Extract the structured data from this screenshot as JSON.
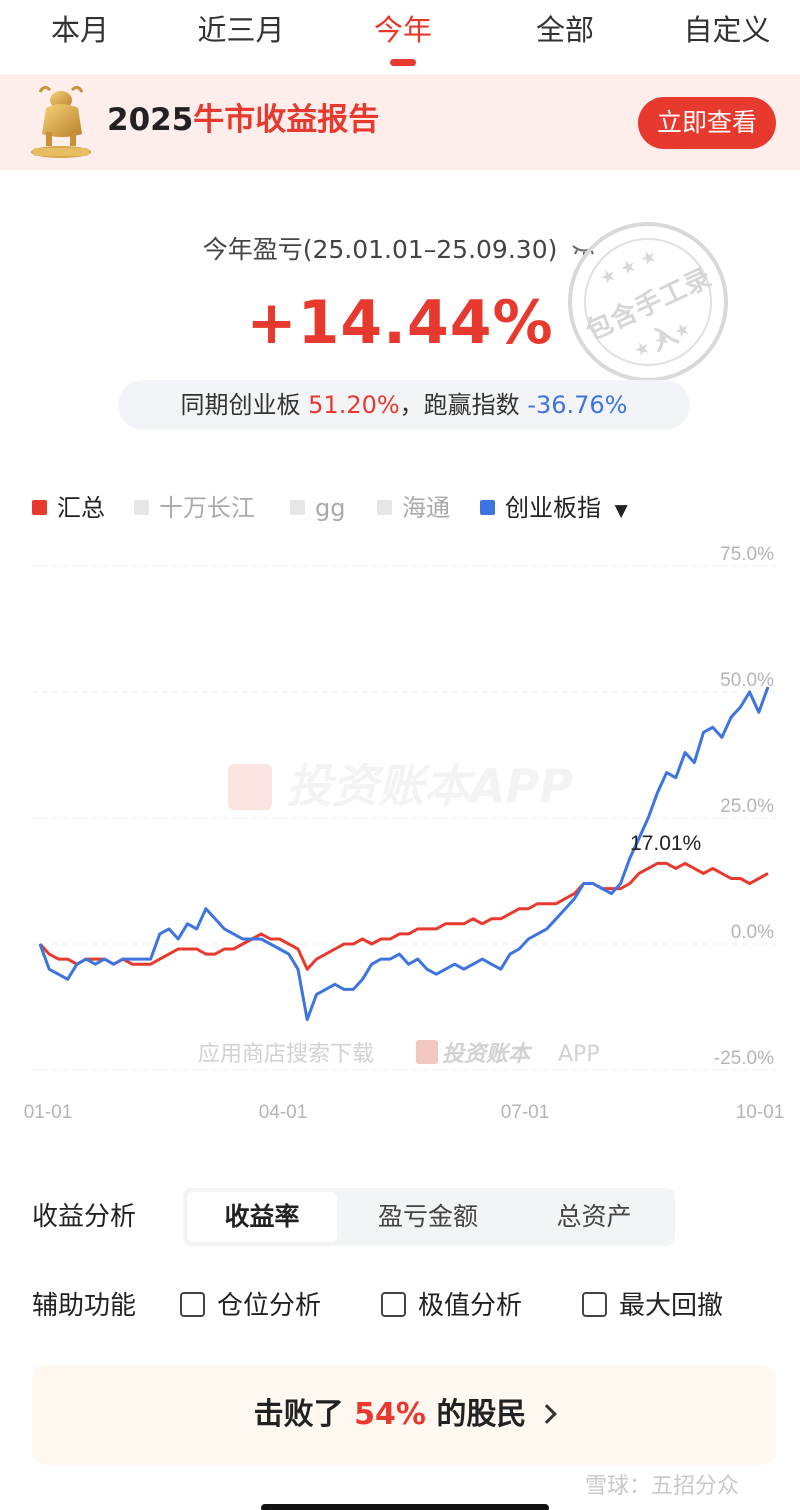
{
  "tabs": [
    {
      "label": "本月",
      "active": false
    },
    {
      "label": "近三月",
      "active": false
    },
    {
      "label": "今年",
      "active": true
    },
    {
      "label": "全部",
      "active": false
    },
    {
      "label": "自定义",
      "active": false
    }
  ],
  "banner": {
    "year": "2025",
    "title_highlight": "牛市收益报告",
    "button_label": "立即查看",
    "icon": "bull-trophy-icon"
  },
  "summary": {
    "period_label": "今年盈亏(25.01.01–25.09.30)",
    "hide_icon": "eye-closed-icon",
    "return_value": "+14.44%",
    "compare_prefix": "同期创业板",
    "compare_index_value": "51.20%",
    "compare_mid": "，跑赢指数",
    "compare_diff": "-36.76%",
    "stamp_text": "包含手工录入",
    "stamp_stars": "★★★"
  },
  "legend": [
    {
      "label": "汇总",
      "color": "#e8392f",
      "active": true
    },
    {
      "label": "十万长江",
      "color": "#e6e6e6",
      "active": false
    },
    {
      "label": "gg",
      "color": "#e6e6e6",
      "active": false
    },
    {
      "label": "海通",
      "color": "#e6e6e6",
      "active": false
    },
    {
      "label": "创业板指",
      "color": "#3d74e0",
      "active": true,
      "dropdown": "▼"
    }
  ],
  "chart_data": {
    "type": "line",
    "x_ticks": [
      "01-01",
      "04-01",
      "07-01",
      "10-01"
    ],
    "y_ticks": [
      "75.0%",
      "50.0%",
      "25.0%",
      "0.0%",
      "-25.0%"
    ],
    "ylim": [
      -25,
      75
    ],
    "grid": true,
    "annotation": "17.01%",
    "watermark": "投资账本APP",
    "watermark_bottom": "应用商店搜索下载",
    "watermark_bottom_brand": "投资账本",
    "watermark_bottom_suffix": "APP",
    "series": [
      {
        "name": "汇总",
        "color": "#e8392f",
        "points": [
          [
            0,
            0
          ],
          [
            2,
            -2
          ],
          [
            4,
            -3
          ],
          [
            6,
            -3
          ],
          [
            8,
            -4
          ],
          [
            10,
            -3
          ],
          [
            12,
            -3
          ],
          [
            14,
            -3
          ],
          [
            16,
            -4
          ],
          [
            18,
            -3
          ],
          [
            20,
            -4
          ],
          [
            22,
            -4
          ],
          [
            24,
            -4
          ],
          [
            26,
            -3
          ],
          [
            28,
            -2
          ],
          [
            30,
            -1
          ],
          [
            32,
            -1
          ],
          [
            34,
            -1
          ],
          [
            36,
            -2
          ],
          [
            38,
            -2
          ],
          [
            40,
            -1
          ],
          [
            42,
            -1
          ],
          [
            44,
            0
          ],
          [
            46,
            1
          ],
          [
            48,
            2
          ],
          [
            50,
            1
          ],
          [
            52,
            1
          ],
          [
            54,
            0
          ],
          [
            56,
            -1
          ],
          [
            58,
            -5
          ],
          [
            60,
            -3
          ],
          [
            62,
            -2
          ],
          [
            64,
            -1
          ],
          [
            66,
            0
          ],
          [
            68,
            0
          ],
          [
            70,
            1
          ],
          [
            72,
            0
          ],
          [
            74,
            1
          ],
          [
            76,
            1
          ],
          [
            78,
            2
          ],
          [
            80,
            2
          ],
          [
            82,
            3
          ],
          [
            84,
            3
          ],
          [
            86,
            3
          ],
          [
            88,
            4
          ],
          [
            90,
            4
          ],
          [
            92,
            4
          ],
          [
            94,
            5
          ],
          [
            96,
            4
          ],
          [
            98,
            5
          ],
          [
            100,
            5
          ],
          [
            102,
            6
          ],
          [
            104,
            7
          ],
          [
            106,
            7
          ],
          [
            108,
            8
          ],
          [
            110,
            8
          ],
          [
            112,
            8
          ],
          [
            114,
            9
          ],
          [
            116,
            10
          ],
          [
            118,
            12
          ],
          [
            120,
            12
          ],
          [
            122,
            11
          ],
          [
            124,
            11
          ],
          [
            126,
            11
          ],
          [
            128,
            12
          ],
          [
            130,
            14
          ],
          [
            132,
            15
          ],
          [
            134,
            16
          ],
          [
            136,
            16
          ],
          [
            138,
            15
          ],
          [
            140,
            16
          ],
          [
            142,
            15
          ],
          [
            144,
            14
          ],
          [
            146,
            15
          ],
          [
            148,
            14
          ],
          [
            150,
            13
          ],
          [
            152,
            13
          ],
          [
            154,
            12
          ],
          [
            156,
            13
          ],
          [
            158,
            14
          ]
        ]
      },
      {
        "name": "创业板指",
        "color": "#3d74e0",
        "points": [
          [
            0,
            0
          ],
          [
            2,
            -5
          ],
          [
            4,
            -6
          ],
          [
            6,
            -7
          ],
          [
            8,
            -4
          ],
          [
            10,
            -3
          ],
          [
            12,
            -4
          ],
          [
            14,
            -3
          ],
          [
            16,
            -4
          ],
          [
            18,
            -3
          ],
          [
            20,
            -3
          ],
          [
            22,
            -3
          ],
          [
            24,
            -3
          ],
          [
            26,
            2
          ],
          [
            28,
            3
          ],
          [
            30,
            1
          ],
          [
            32,
            4
          ],
          [
            34,
            3
          ],
          [
            36,
            7
          ],
          [
            38,
            5
          ],
          [
            40,
            3
          ],
          [
            42,
            2
          ],
          [
            44,
            1
          ],
          [
            46,
            1
          ],
          [
            48,
            1
          ],
          [
            50,
            0
          ],
          [
            52,
            -1
          ],
          [
            54,
            -2
          ],
          [
            56,
            -5
          ],
          [
            58,
            -15
          ],
          [
            60,
            -10
          ],
          [
            62,
            -9
          ],
          [
            64,
            -8
          ],
          [
            66,
            -9
          ],
          [
            68,
            -9
          ],
          [
            70,
            -7
          ],
          [
            72,
            -4
          ],
          [
            74,
            -3
          ],
          [
            76,
            -3
          ],
          [
            78,
            -2
          ],
          [
            80,
            -4
          ],
          [
            82,
            -3
          ],
          [
            84,
            -5
          ],
          [
            86,
            -6
          ],
          [
            88,
            -5
          ],
          [
            90,
            -4
          ],
          [
            92,
            -5
          ],
          [
            94,
            -4
          ],
          [
            96,
            -3
          ],
          [
            98,
            -4
          ],
          [
            100,
            -5
          ],
          [
            102,
            -2
          ],
          [
            104,
            -1
          ],
          [
            106,
            1
          ],
          [
            108,
            2
          ],
          [
            110,
            3
          ],
          [
            112,
            5
          ],
          [
            114,
            7
          ],
          [
            116,
            9
          ],
          [
            118,
            12
          ],
          [
            120,
            12
          ],
          [
            122,
            11
          ],
          [
            124,
            10
          ],
          [
            126,
            12
          ],
          [
            128,
            17
          ],
          [
            130,
            21
          ],
          [
            132,
            25
          ],
          [
            134,
            30
          ],
          [
            136,
            34
          ],
          [
            138,
            33
          ],
          [
            140,
            38
          ],
          [
            142,
            36
          ],
          [
            144,
            42
          ],
          [
            146,
            43
          ],
          [
            148,
            41
          ],
          [
            150,
            45
          ],
          [
            152,
            47
          ],
          [
            154,
            50
          ],
          [
            156,
            46
          ],
          [
            158,
            51
          ]
        ]
      }
    ]
  },
  "analysis": {
    "label": "收益分析",
    "options": [
      {
        "label": "收益率",
        "active": true
      },
      {
        "label": "盈亏金额",
        "active": false
      },
      {
        "label": "总资产",
        "active": false
      }
    ]
  },
  "aux": {
    "label": "辅助功能",
    "options": [
      {
        "label": "仓位分析",
        "checked": false
      },
      {
        "label": "极值分析",
        "checked": false
      },
      {
        "label": "最大回撤",
        "checked": false
      }
    ]
  },
  "beat": {
    "prefix": "击败了",
    "percent": "54%",
    "suffix": "的股民",
    "icon": "chevron-right-icon"
  },
  "footer_watermark": "雪球：五招分众"
}
